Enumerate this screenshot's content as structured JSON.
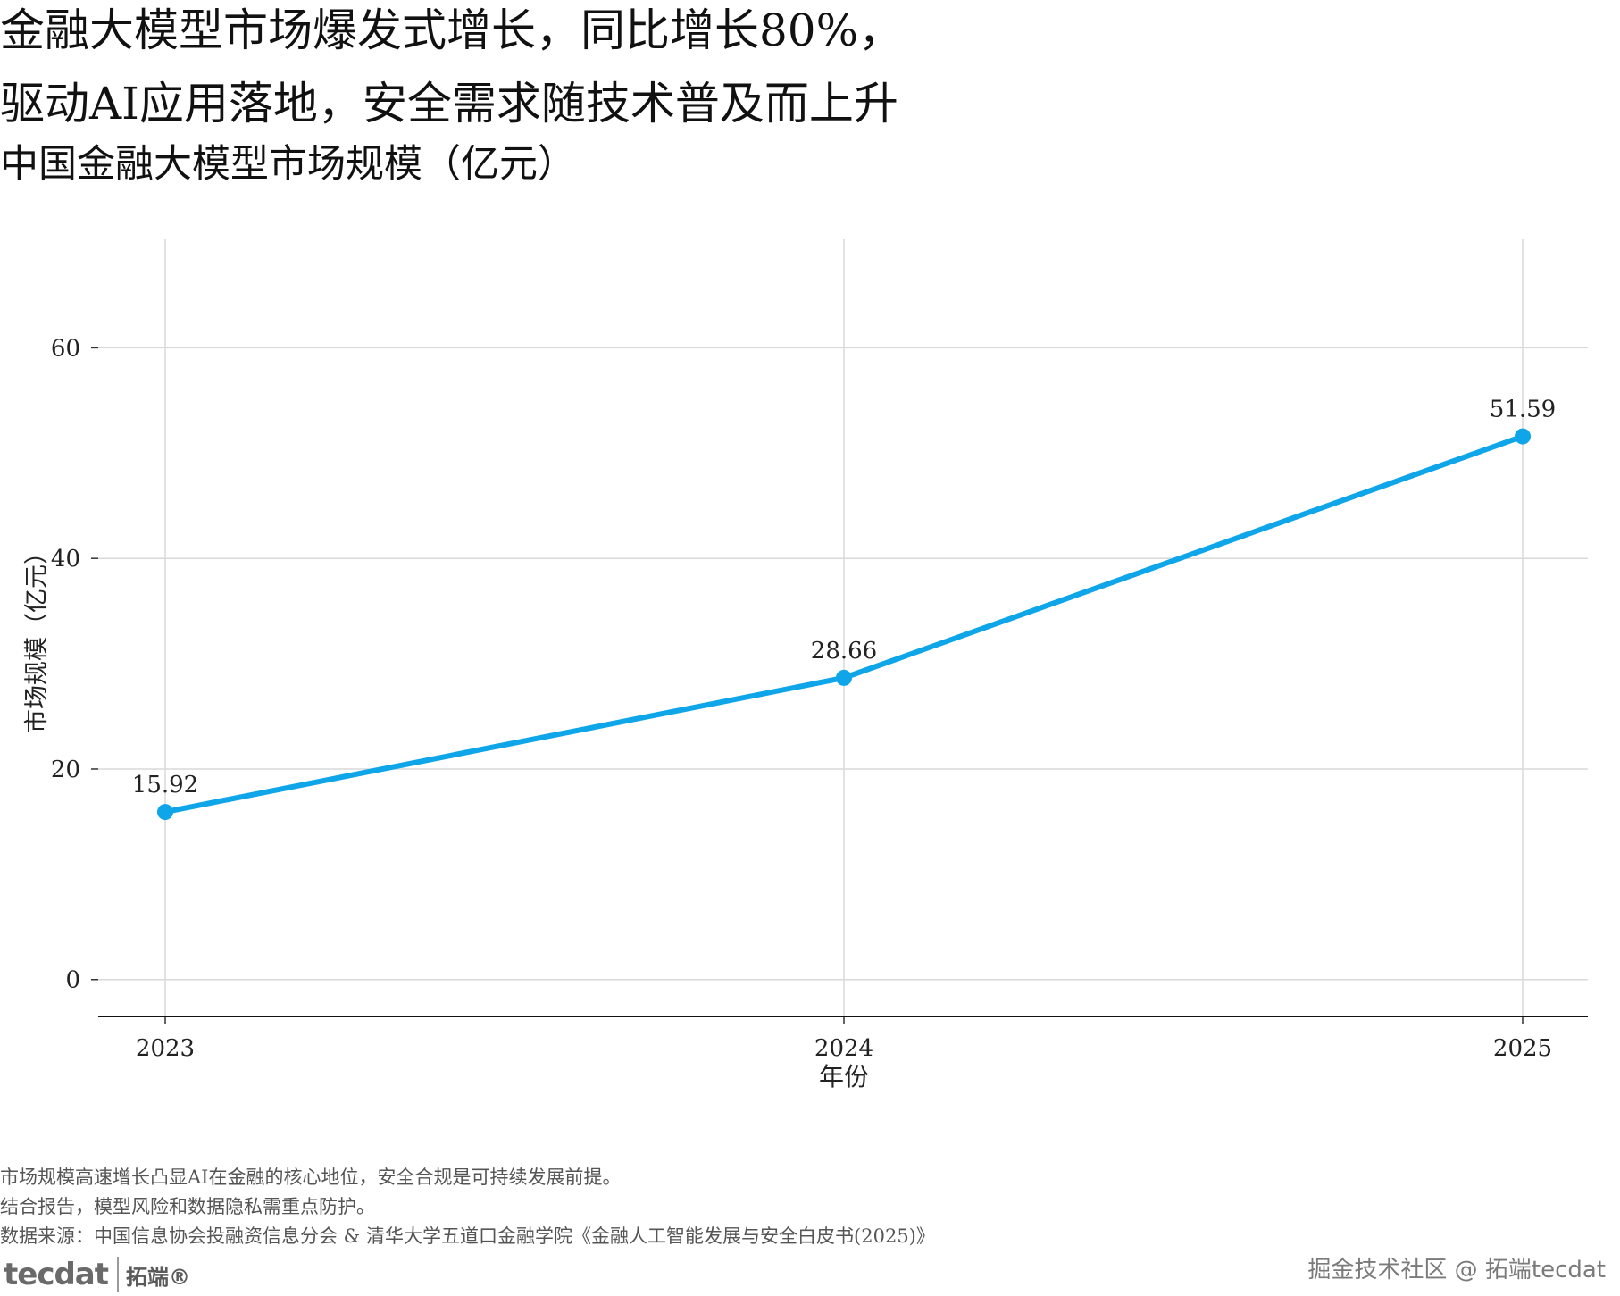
{
  "header": {
    "title_line_1": "金融大模型市场爆发式增长，同比增长80%，",
    "title_line_2": "驱动AI应用落地，安全需求随技术普及而上升",
    "subtitle": "中国金融大模型市场规模（亿元）"
  },
  "chart_data": {
    "type": "line",
    "title": "",
    "x": [
      "2023",
      "2024",
      "2025"
    ],
    "series": [
      {
        "values": [
          15.92,
          28.66,
          51.59
        ],
        "data_labels": [
          "15.92",
          "28.66",
          "51.59"
        ],
        "color": "#0ea5e9"
      }
    ],
    "xlabel": "年份",
    "ylabel": "市场规模（亿元）",
    "ylim": [
      -3.5,
      70.3
    ],
    "yticks": [
      0,
      20,
      40,
      60
    ],
    "ytick_labels": [
      "0",
      "20",
      "40",
      "60"
    ],
    "grid": true
  },
  "footer": {
    "note_1": "市场规模高速增长凸显AI在金融的核心地位，安全合规是可持续发展前提。",
    "note_2": "结合报告，模型风险和数据隐私需重点防护。",
    "source": "数据来源：中国信息协会投融资信息分会 & 清华大学五道口金融学院《金融人工智能发展与安全白皮书(2025)》",
    "logo_text": "tecdat",
    "logo_cn": "拓端®",
    "watermark": "掘金技术社区 @ 拓端tecdat"
  }
}
